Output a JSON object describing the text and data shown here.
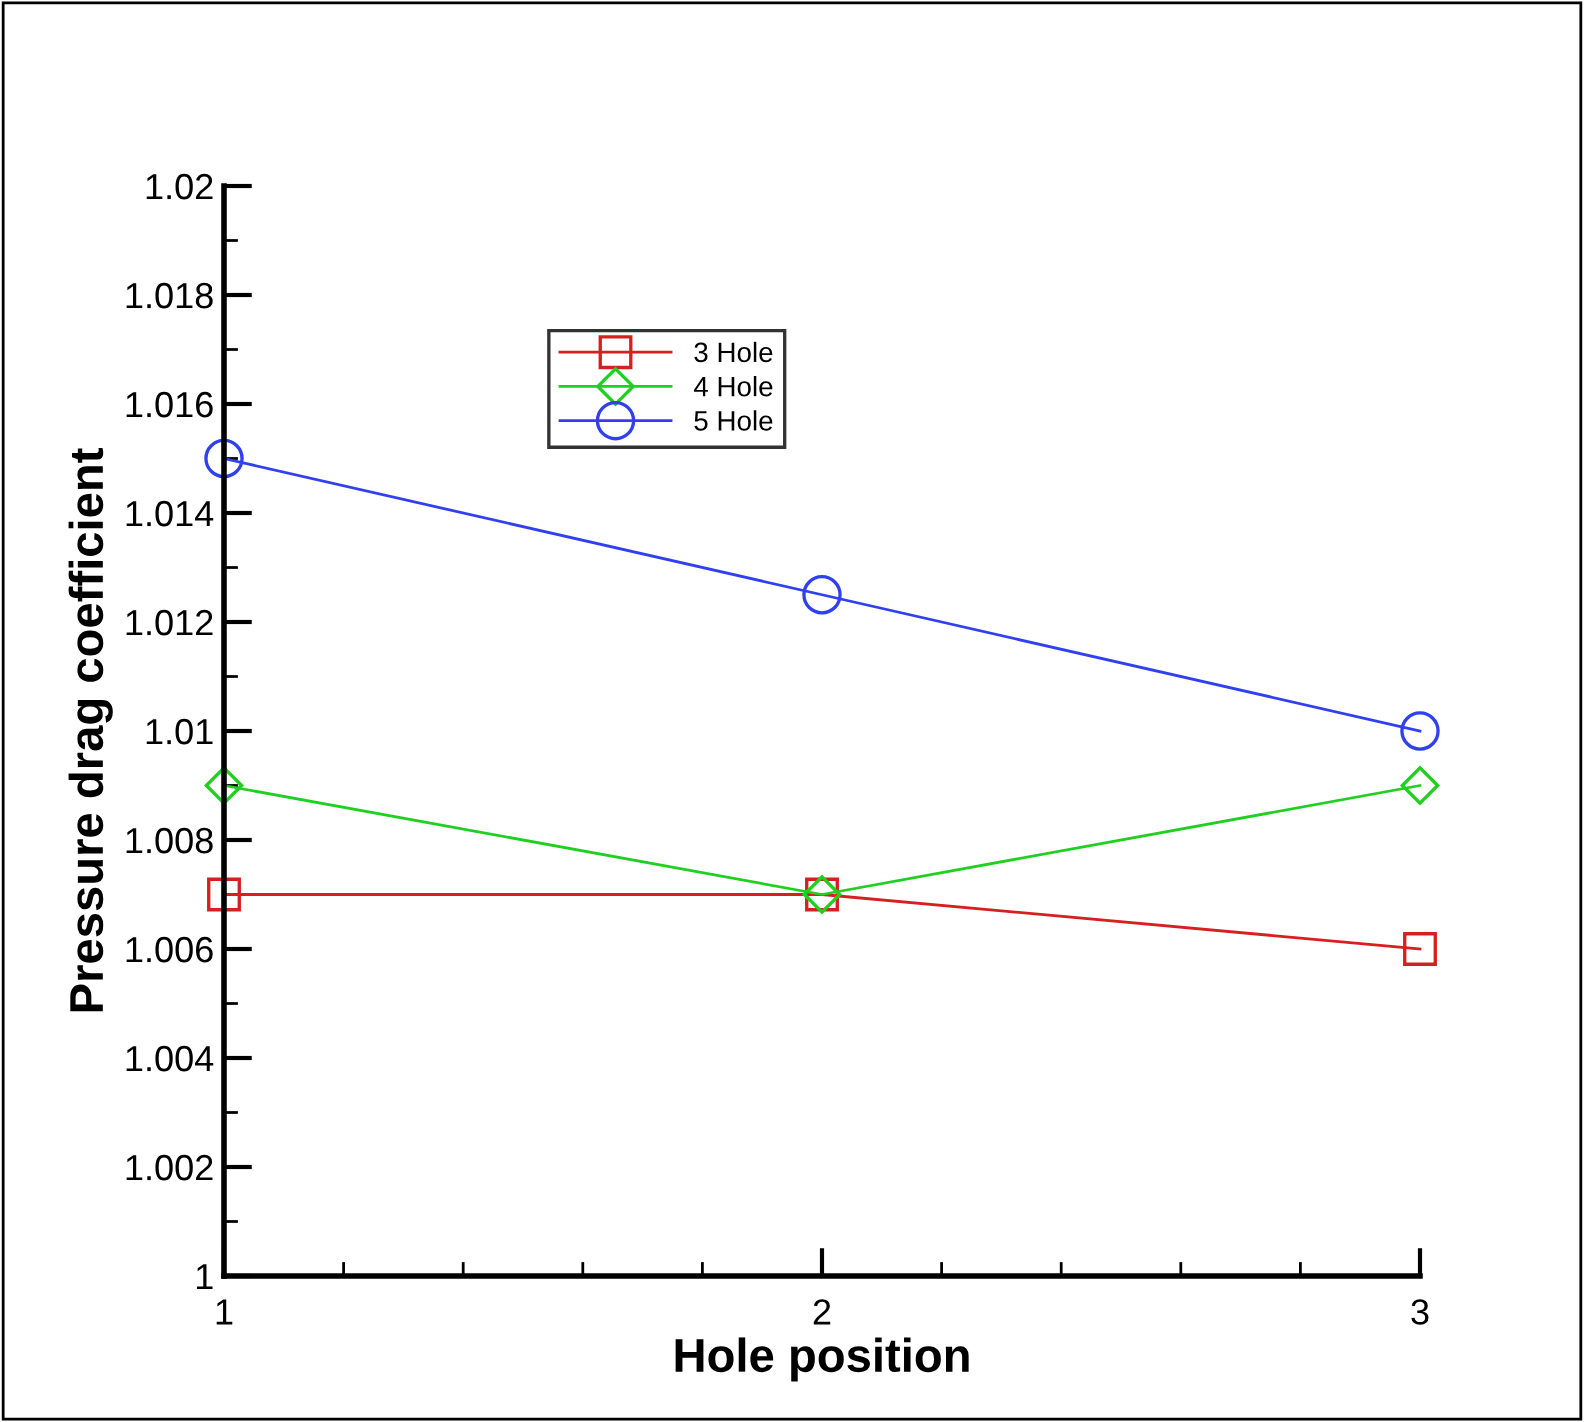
{
  "chart_data": {
    "type": "line",
    "xlabel": "Hole position",
    "ylabel": "Pressure drag coefficient",
    "x": [
      1,
      2,
      3
    ],
    "series": [
      {
        "name": "3 Hole",
        "color": "#d62020",
        "values": [
          1.007,
          1.007,
          1.006
        ],
        "marker": "square"
      },
      {
        "name": "4 Hole",
        "color": "#20d020",
        "values": [
          1.009,
          1.007,
          1.009
        ],
        "marker": "diamond"
      },
      {
        "name": "5 Hole",
        "color": "#3040f0",
        "values": [
          1.015,
          1.0125,
          1.01
        ],
        "marker": "circle"
      }
    ],
    "xlim": [
      1,
      3
    ],
    "xticks": [
      1,
      2,
      3
    ],
    "ylim": [
      1,
      1.02
    ],
    "yticks": [
      1,
      1.002,
      1.004,
      1.006,
      1.008,
      1.01,
      1.012,
      1.014,
      1.016,
      1.018,
      1.02
    ],
    "grid": false,
    "legend": "top left",
    "line_style": "solid"
  }
}
